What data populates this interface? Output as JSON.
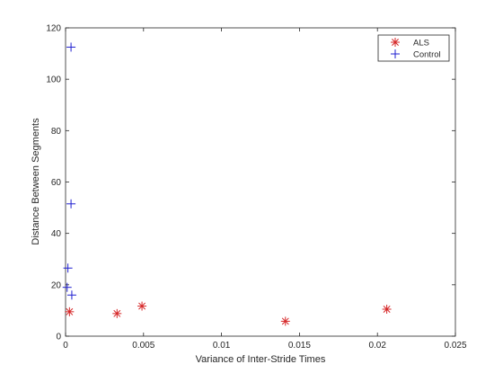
{
  "chart_data": {
    "type": "scatter",
    "xlabel": "Variance of Inter-Stride Times",
    "ylabel": "Distance Between Segments",
    "xlim": [
      0,
      0.025
    ],
    "ylim": [
      0,
      120
    ],
    "xticks": [
      0,
      0.005,
      0.01,
      0.015,
      0.02,
      0.025
    ],
    "xtick_labels": [
      "0",
      "0.005",
      "0.01",
      "0.015",
      "0.02",
      "0.025"
    ],
    "yticks": [
      0,
      20,
      40,
      60,
      80,
      100,
      120
    ],
    "ytick_labels": [
      "0",
      "20",
      "40",
      "60",
      "80",
      "100",
      "120"
    ],
    "grid": false,
    "legend_position": "top-right",
    "series": [
      {
        "name": "ALS",
        "marker": "asterisk",
        "color": "#d62728",
        "points": [
          {
            "x": 0.00025,
            "y": 9.5
          },
          {
            "x": 0.0033,
            "y": 8.8
          },
          {
            "x": 0.0049,
            "y": 11.7
          },
          {
            "x": 0.0141,
            "y": 5.8
          },
          {
            "x": 0.0206,
            "y": 10.5
          }
        ]
      },
      {
        "name": "Control",
        "marker": "plus",
        "color": "#1f1fd0",
        "points": [
          {
            "x": 0.00035,
            "y": 112.5
          },
          {
            "x": 0.00035,
            "y": 51.5
          },
          {
            "x": 0.00015,
            "y": 26.5
          },
          {
            "x": 0.0001,
            "y": 19.0
          },
          {
            "x": 0.0004,
            "y": 16.0
          }
        ]
      }
    ]
  }
}
